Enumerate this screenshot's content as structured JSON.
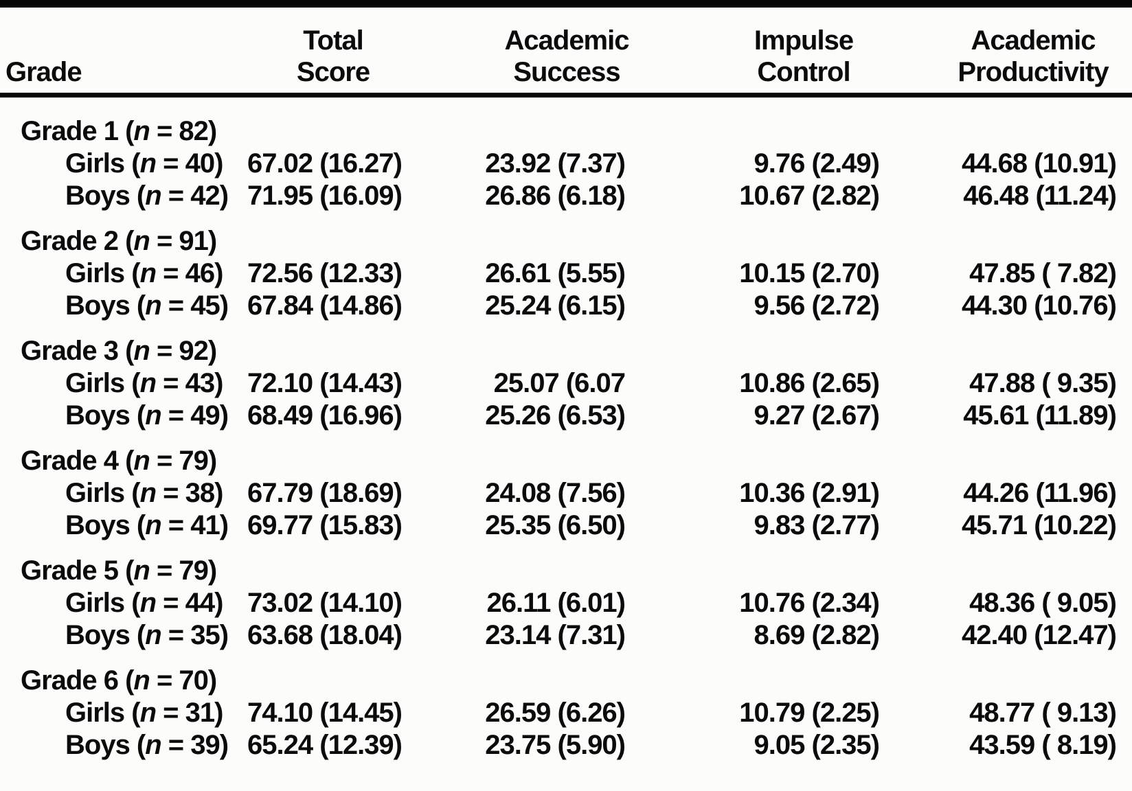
{
  "document": {
    "kind": "statistics-table",
    "colors": {
      "text": "#0b0b0b",
      "rule": "#050505",
      "background": "#fcfcfb"
    }
  },
  "table": {
    "headers": {
      "grade": "Grade",
      "total_score": [
        "Total",
        "Score"
      ],
      "academic_success": [
        "Academic",
        "Success"
      ],
      "impulse_control": [
        "Impulse",
        "Control"
      ],
      "academic_productivity": [
        "Academic",
        "Productivity"
      ]
    },
    "groups": [
      {
        "label": "Grade 1 (n = 82)",
        "rows": [
          {
            "label": "Girls (n = 40)",
            "values": [
              "67.02 (16.27)",
              "23.92 (7.37)",
              "9.76 (2.49)",
              "44.68 (10.91)"
            ]
          },
          {
            "label": "Boys (n = 42)",
            "values": [
              "71.95 (16.09)",
              "26.86 (6.18)",
              "10.67 (2.82)",
              "46.48 (11.24)"
            ]
          }
        ]
      },
      {
        "label": "Grade 2 (n = 91)",
        "rows": [
          {
            "label": "Girls (n = 46)",
            "values": [
              "72.56 (12.33)",
              "26.61 (5.55)",
              "10.15 (2.70)",
              "47.85 ( 7.82)"
            ]
          },
          {
            "label": "Boys (n = 45)",
            "values": [
              "67.84 (14.86)",
              "25.24 (6.15)",
              "9.56 (2.72)",
              "44.30 (10.76)"
            ]
          }
        ]
      },
      {
        "label": "Grade 3 (n = 92)",
        "rows": [
          {
            "label": "Girls (n = 43)",
            "values": [
              "72.10 (14.43)",
              "25.07 (6.07",
              "10.86 (2.65)",
              "47.88 ( 9.35)"
            ]
          },
          {
            "label": "Boys (n = 49)",
            "values": [
              "68.49 (16.96)",
              "25.26 (6.53)",
              "9.27 (2.67)",
              "45.61 (11.89)"
            ]
          }
        ]
      },
      {
        "label": "Grade 4 (n = 79)",
        "rows": [
          {
            "label": "Girls (n = 38)",
            "values": [
              "67.79 (18.69)",
              "24.08 (7.56)",
              "10.36 (2.91)",
              "44.26 (11.96)"
            ]
          },
          {
            "label": "Boys (n = 41)",
            "values": [
              "69.77 (15.83)",
              "25.35 (6.50)",
              "9.83 (2.77)",
              "45.71 (10.22)"
            ]
          }
        ]
      },
      {
        "label": "Grade 5 (n = 79)",
        "rows": [
          {
            "label": "Girls (n = 44)",
            "values": [
              "73.02 (14.10)",
              "26.11 (6.01)",
              "10.76 (2.34)",
              "48.36 ( 9.05)"
            ]
          },
          {
            "label": "Boys (n = 35)",
            "values": [
              "63.68 (18.04)",
              "23.14 (7.31)",
              "8.69 (2.82)",
              "42.40 (12.47)"
            ]
          }
        ]
      },
      {
        "label": "Grade 6 (n = 70)",
        "rows": [
          {
            "label": "Girls (n = 31)",
            "values": [
              "74.10 (14.45)",
              "26.59 (6.26)",
              "10.79 (2.25)",
              "48.77 ( 9.13)"
            ]
          },
          {
            "label": "Boys (n = 39)",
            "values": [
              "65.24 (12.39)",
              "23.75 (5.90)",
              "9.05 (2.35)",
              "43.59 ( 8.19)"
            ]
          }
        ]
      }
    ]
  }
}
